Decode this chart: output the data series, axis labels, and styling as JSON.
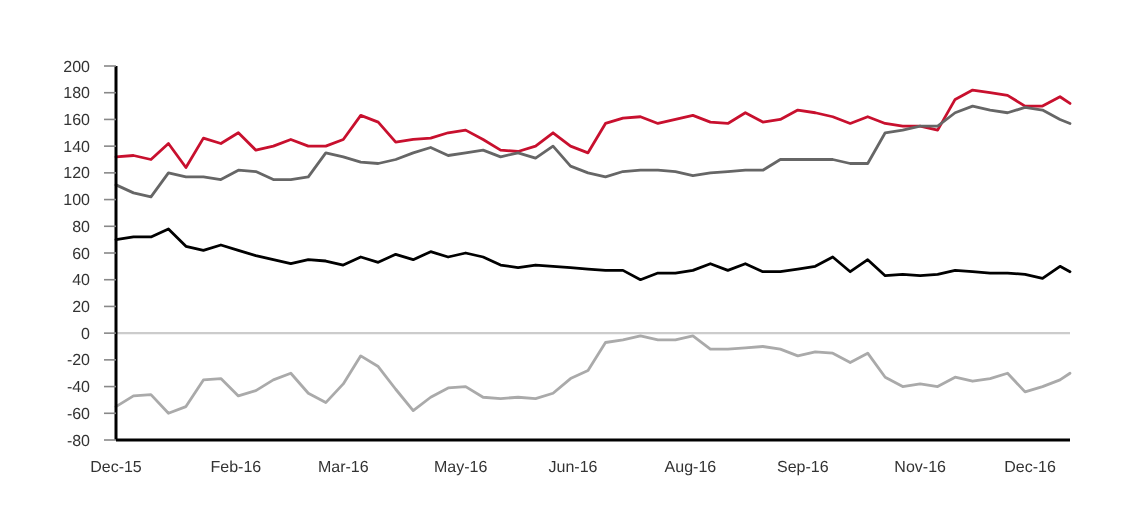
{
  "chart_data": {
    "type": "line",
    "x": [
      "2015-12-15",
      "2015-12-22",
      "2015-12-29",
      "2016-01-05",
      "2016-01-12",
      "2016-01-19",
      "2016-01-26",
      "2016-02-02",
      "2016-02-09",
      "2016-02-16",
      "2016-02-23",
      "2016-03-01",
      "2016-03-08",
      "2016-03-15",
      "2016-03-22",
      "2016-03-29",
      "2016-04-05",
      "2016-04-12",
      "2016-04-19",
      "2016-04-26",
      "2016-05-03",
      "2016-05-10",
      "2016-05-17",
      "2016-05-24",
      "2016-05-31",
      "2016-06-07",
      "2016-06-14",
      "2016-06-21",
      "2016-06-28",
      "2016-07-05",
      "2016-07-12",
      "2016-07-19",
      "2016-07-26",
      "2016-08-02",
      "2016-08-09",
      "2016-08-16",
      "2016-08-23",
      "2016-08-30",
      "2016-09-06",
      "2016-09-13",
      "2016-09-20",
      "2016-09-27",
      "2016-10-04",
      "2016-10-11",
      "2016-10-18",
      "2016-10-25",
      "2016-11-01",
      "2016-11-08",
      "2016-11-15",
      "2016-11-22",
      "2016-11-29",
      "2016-12-06",
      "2016-12-13",
      "2016-12-20",
      "2016-12-27",
      "2016-12-31"
    ],
    "series": [
      {
        "color": "#c8102e",
        "values": [
          132,
          133,
          130,
          142,
          124,
          146,
          142,
          150,
          137,
          140,
          145,
          140,
          140,
          145,
          163,
          158,
          143,
          145,
          146,
          150,
          152,
          145,
          137,
          136,
          140,
          150,
          140,
          135,
          157,
          161,
          162,
          157,
          160,
          163,
          158,
          157,
          165,
          158,
          160,
          167,
          165,
          162,
          157,
          162,
          157,
          155,
          155,
          152,
          175,
          182,
          180,
          178,
          170,
          170,
          177,
          172
        ]
      },
      {
        "color": "#666666",
        "values": [
          111,
          105,
          102,
          120,
          117,
          117,
          115,
          122,
          121,
          115,
          115,
          117,
          135,
          132,
          128,
          127,
          130,
          135,
          139,
          133,
          135,
          137,
          132,
          135,
          131,
          140,
          125,
          120,
          117,
          121,
          122,
          122,
          121,
          118,
          120,
          121,
          122,
          122,
          130,
          130,
          130,
          130,
          127,
          127,
          150,
          152,
          155,
          155,
          165,
          170,
          167,
          165,
          169,
          167,
          160,
          157
        ]
      },
      {
        "color": "#000000",
        "values": [
          70,
          72,
          72,
          78,
          65,
          62,
          66,
          62,
          58,
          55,
          52,
          55,
          54,
          51,
          57,
          53,
          59,
          55,
          61,
          57,
          60,
          57,
          51,
          49,
          51,
          50,
          49,
          48,
          47,
          47,
          40,
          45,
          45,
          47,
          52,
          47,
          52,
          46,
          46,
          48,
          50,
          57,
          46,
          55,
          43,
          44,
          43,
          44,
          47,
          46,
          45,
          45,
          44,
          41,
          50,
          46
        ]
      },
      {
        "color": "#aaaaaa",
        "values": [
          -55,
          -47,
          -46,
          -60,
          -55,
          -35,
          -34,
          -47,
          -43,
          -35,
          -30,
          -45,
          -52,
          -38,
          -17,
          -25,
          -42,
          -58,
          -48,
          -41,
          -40,
          -48,
          -49,
          -48,
          -49,
          -45,
          -34,
          -28,
          -7,
          -5,
          -2,
          -5,
          -5,
          -2,
          -12,
          -12,
          -11,
          -10,
          -12,
          -17,
          -14,
          -15,
          -22,
          -15,
          -33,
          -40,
          -38,
          -40,
          -33,
          -36,
          -34,
          -30,
          -44,
          -40,
          -35,
          -30
        ]
      }
    ],
    "xlim": [
      "2015-12-15",
      "2016-12-31"
    ],
    "xticks": [
      {
        "value": "2015-12-15",
        "label": "Dec-15"
      },
      {
        "value": "2016-02-01",
        "label": "Feb-16"
      },
      {
        "value": "2016-03-15",
        "label": "Mar-16"
      },
      {
        "value": "2016-05-01",
        "label": "May-16"
      },
      {
        "value": "2016-06-15",
        "label": "Jun-16"
      },
      {
        "value": "2016-08-01",
        "label": "Aug-16"
      },
      {
        "value": "2016-09-15",
        "label": "Sep-16"
      },
      {
        "value": "2016-11-01",
        "label": "Nov-16"
      },
      {
        "value": "2016-12-15",
        "label": "Dec-16"
      }
    ],
    "ylim": [
      -80,
      200
    ],
    "yticks": [
      -80,
      -60,
      -40,
      -20,
      0,
      20,
      40,
      60,
      80,
      100,
      120,
      140,
      160,
      180,
      200
    ],
    "ref_lines": [
      {
        "axis": "y",
        "value": 0,
        "color": "#cccccc"
      }
    ],
    "grid": false,
    "marker": "none",
    "line_style": "solid"
  }
}
